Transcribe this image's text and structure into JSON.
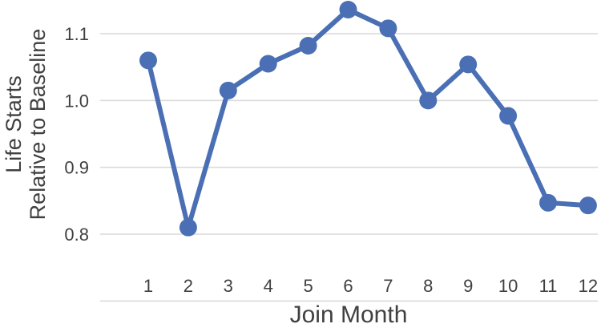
{
  "chart_data": {
    "type": "line",
    "title": "",
    "xlabel": "Join Month",
    "ylabel_lines": [
      "Life Starts",
      "Relative to Baseline"
    ],
    "x": [
      1,
      2,
      3,
      4,
      5,
      6,
      7,
      8,
      9,
      10,
      11,
      12
    ],
    "series": [
      {
        "values": [
          1.06,
          0.81,
          1.015,
          1.055,
          1.082,
          1.136,
          1.108,
          1.0,
          1.054,
          0.977,
          0.847,
          0.843
        ]
      }
    ],
    "y_ticks": [
      "0.8",
      "0.9",
      "1.0",
      "1.1"
    ],
    "ylim": [
      0.7,
      1.15
    ],
    "grid": "horizontal",
    "legend": "none",
    "colors": {
      "line": "#4a6fb5",
      "grid": "#d9d9d9",
      "text": "#404040"
    }
  }
}
